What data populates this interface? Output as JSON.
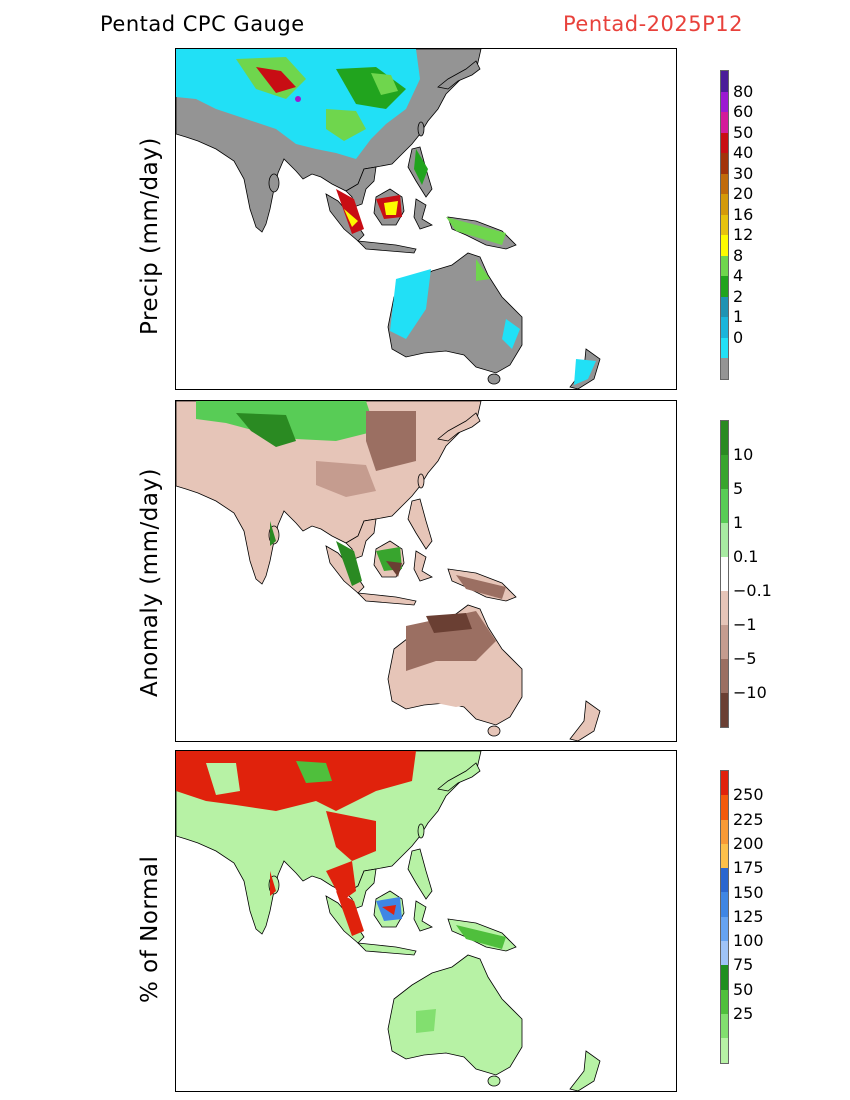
{
  "header": {
    "left_title": "Pentad CPC Gauge",
    "right_title": "Pentad-2025P12",
    "right_color": "#e8413b"
  },
  "panels": [
    {
      "id": "precip",
      "ylabel": "Precip (mm/day)",
      "colorbar": {
        "colors": [
          "#4b1d99",
          "#9c19d2",
          "#d31b9b",
          "#c80d14",
          "#a2330a",
          "#c06b0b",
          "#d49a0a",
          "#e6c20d",
          "#fdfb00",
          "#6fd64d",
          "#21a41e",
          "#1f93b3",
          "#1bb5db",
          "#21e0f6",
          "#949494"
        ],
        "labels": [
          "80",
          "60",
          "50",
          "40",
          "30",
          "20",
          "16",
          "12",
          "8",
          "4",
          "2",
          "1",
          "0"
        ]
      }
    },
    {
      "id": "anomaly",
      "ylabel": "Anomaly (mm/day)",
      "colorbar": {
        "colors": [
          "#2a8a22",
          "#38a52e",
          "#58cc56",
          "#a8eba2",
          "#ffffff",
          "#e6c5b8",
          "#c59c8f",
          "#9b6f62",
          "#6a3f33"
        ],
        "labels": [
          "10",
          "5",
          "1",
          "0.1",
          "−0.1",
          "−1",
          "−5",
          "−10"
        ]
      }
    },
    {
      "id": "percent",
      "ylabel": "% of Normal",
      "colorbar": {
        "colors": [
          "#e0220c",
          "#f45a0c",
          "#f89a36",
          "#fdc04a",
          "#2a66d0",
          "#3f86e4",
          "#66a3f0",
          "#9fc3f6",
          "#1f8f20",
          "#4fbf3c",
          "#82df6f",
          "#b7f2a5"
        ],
        "labels": [
          "250",
          "225",
          "200",
          "175",
          "150",
          "125",
          "100",
          "75",
          "50",
          "25"
        ]
      }
    }
  ]
}
